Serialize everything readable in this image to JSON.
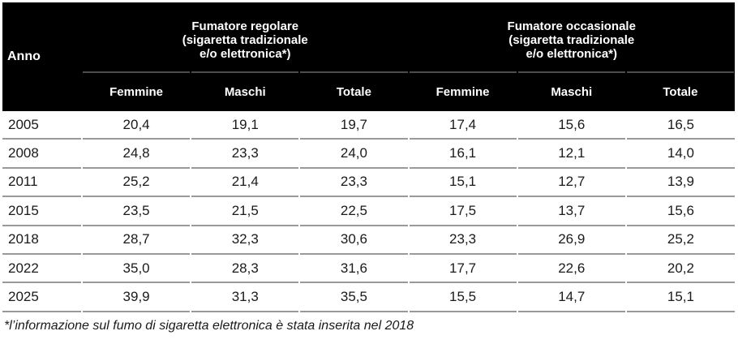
{
  "colors": {
    "header_bg": "#000000",
    "header_text": "#ffffff",
    "group_underline": "#4d4d4d",
    "row_separator": "#999999",
    "body_text": "#1a1a1a",
    "page_bg": "#ffffff"
  },
  "table": {
    "anno_label": "Anno",
    "groups": [
      {
        "lines": [
          "Fumatore regolare",
          "(sigaretta tradizionale",
          "e/o elettronica*)"
        ]
      },
      {
        "lines": [
          "Fumatore occasionale",
          "(sigaretta tradizionale",
          "e/o elettronica*)"
        ]
      }
    ],
    "sub_headers": [
      "Femmine",
      "Maschi",
      "Totale",
      "Femmine",
      "Maschi",
      "Totale"
    ],
    "rows": [
      {
        "year": "2005",
        "values": [
          "20,4",
          "19,1",
          "19,7",
          "17,4",
          "15,6",
          "16,5"
        ]
      },
      {
        "year": "2008",
        "values": [
          "24,8",
          "23,3",
          "24,0",
          "16,1",
          "12,1",
          "14,0"
        ]
      },
      {
        "year": "2011",
        "values": [
          "25,2",
          "21,4",
          "23,3",
          "15,1",
          "12,7",
          "13,9"
        ]
      },
      {
        "year": "2015",
        "values": [
          "23,5",
          "21,5",
          "22,5",
          "17,5",
          "13,7",
          "15,6"
        ]
      },
      {
        "year": "2018",
        "values": [
          "28,7",
          "32,3",
          "30,6",
          "23,3",
          "26,9",
          "25,2"
        ]
      },
      {
        "year": "2022",
        "values": [
          "35,0",
          "28,3",
          "31,6",
          "17,7",
          "22,6",
          "20,2"
        ]
      },
      {
        "year": "2025",
        "values": [
          "39,9",
          "31,3",
          "35,5",
          "15,5",
          "14,7",
          "15,1"
        ]
      }
    ],
    "footnote": "*l’informazione sul fumo di sigaretta elettronica è stata inserita nel 2018"
  },
  "chart_data": {
    "type": "table",
    "title": "",
    "columns": [
      "Anno",
      "Fumatore regolare (sigaretta tradizionale e/o elettronica*) - Femmine",
      "Fumatore regolare (sigaretta tradizionale e/o elettronica*) - Maschi",
      "Fumatore regolare (sigaretta tradizionale e/o elettronica*) - Totale",
      "Fumatore occasionale (sigaretta tradizionale e/o elettronica*) - Femmine",
      "Fumatore occasionale (sigaretta tradizionale e/o elettronica*) - Maschi",
      "Fumatore occasionale (sigaretta tradizionale e/o elettronica*) - Totale"
    ],
    "rows": [
      [
        2005,
        20.4,
        19.1,
        19.7,
        17.4,
        15.6,
        16.5
      ],
      [
        2008,
        24.8,
        23.3,
        24.0,
        16.1,
        12.1,
        14.0
      ],
      [
        2011,
        25.2,
        21.4,
        23.3,
        15.1,
        12.7,
        13.9
      ],
      [
        2015,
        23.5,
        21.5,
        22.5,
        17.5,
        13.7,
        15.6
      ],
      [
        2018,
        28.7,
        32.3,
        30.6,
        23.3,
        26.9,
        25.2
      ],
      [
        2022,
        35.0,
        28.3,
        31.6,
        17.7,
        22.6,
        20.2
      ],
      [
        2025,
        39.9,
        31.3,
        35.5,
        15.5,
        14.7,
        15.1
      ]
    ],
    "footnote": "*l’informazione sul fumo di sigaretta elettronica è stata inserita nel 2018"
  }
}
